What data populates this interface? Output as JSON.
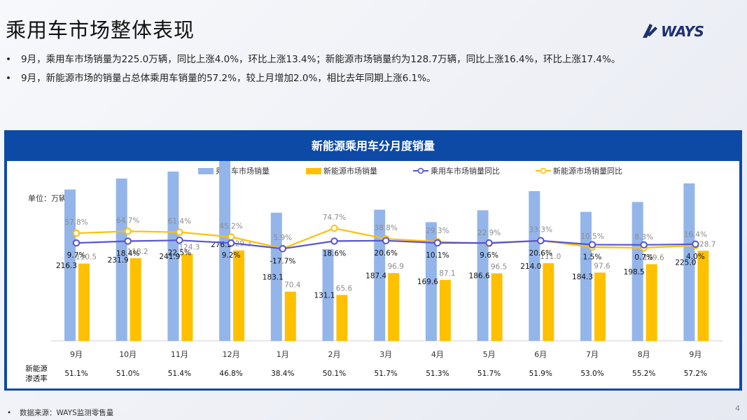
{
  "page": {
    "title": "乘用车市场整体表现",
    "logo_text": "WAYS",
    "bullets": [
      "9月，乘用车市场销量为225.0万辆，同比上涨4.0%，环比上涨13.4%；新能源市场销量约为128.7万辆，同比上涨16.4%，环比上涨17.4%。",
      "9月，新能源市场的销量占总体乘用车销量的57.2%，较上月增加2.0%，相比去年同期上涨6.1%。"
    ],
    "bullet_marker": "•",
    "footnote": "数据来源：WAYS监测零售量",
    "page_number": "4"
  },
  "chart_data": {
    "type": "bar",
    "title": "新能源乘用车分月度销量",
    "unit_label": "单位：万辆",
    "categories": [
      "9月",
      "10月",
      "11月",
      "12月",
      "1月",
      "2月",
      "3月",
      "4月",
      "5月",
      "6月",
      "7月",
      "8月",
      "9月"
    ],
    "series": [
      {
        "name": "乘用车市场销量",
        "type": "bar",
        "color": "#94b5ea",
        "values": [
          216.3,
          231.9,
          241.9,
          276.2,
          183.1,
          131.1,
          187.4,
          169.6,
          186.6,
          214.0,
          184.3,
          198.5,
          225.0
        ]
      },
      {
        "name": "新能源市场销量",
        "type": "bar",
        "color": "#ffc000",
        "values": [
          110.5,
          118.2,
          124.3,
          129.3,
          70.4,
          65.6,
          96.9,
          87.1,
          96.5,
          111.0,
          97.6,
          109.6,
          128.7
        ]
      },
      {
        "name": "乘用车市场销量同比",
        "type": "line",
        "color": "#5654d6",
        "values": [
          9.7,
          18.4,
          22.5,
          9.2,
          -17.7,
          18.6,
          20.6,
          10.1,
          9.6,
          20.6,
          1.5,
          0.7,
          4.0
        ],
        "labels": [
          "9.7%",
          "18.4%",
          "22.5%",
          "9.2%",
          "-17.7%",
          "18.6%",
          "20.6%",
          "10.1%",
          "9.6%",
          "20.6%",
          "1.5%",
          "0.7%",
          "4.0%"
        ]
      },
      {
        "name": "新能源市场销量同比",
        "type": "line",
        "color": "#ffc000",
        "values": [
          57.8,
          64.7,
          61.4,
          45.2,
          5.9,
          74.7,
          38.8,
          29.3,
          22.9,
          33.3,
          10.5,
          8.3,
          16.4
        ],
        "labels": [
          "57.8%",
          "64.7%",
          "61.4%",
          "45.2%",
          "5.9%",
          "74.7%",
          "38.8%",
          "29.3%",
          "22.9%",
          "33.3%",
          "10.5%",
          "8.3%",
          "16.4%"
        ]
      }
    ],
    "penetration": {
      "label_line1": "新能源",
      "label_line2": "渗透率",
      "values": [
        "51.1%",
        "51.0%",
        "51.4%",
        "46.8%",
        "38.4%",
        "50.1%",
        "51.7%",
        "51.3%",
        "51.7%",
        "51.9%",
        "53.0%",
        "55.2%",
        "57.2%"
      ]
    },
    "legend_position": "top-center",
    "grid": false,
    "colors": {
      "panel": "#0d4aa5",
      "bar_total": "#94b5ea",
      "bar_nev": "#ffc000",
      "line_total": "#5654d6",
      "line_nev": "#ffc000"
    }
  }
}
